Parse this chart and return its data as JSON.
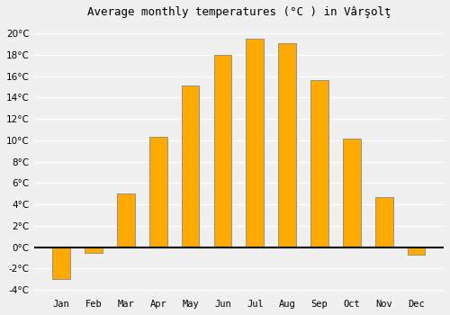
{
  "title": "Average monthly temperatures (°C ) in Vârşolţ",
  "months": [
    "Jan",
    "Feb",
    "Mar",
    "Apr",
    "May",
    "Jun",
    "Jul",
    "Aug",
    "Sep",
    "Oct",
    "Nov",
    "Dec"
  ],
  "temperatures": [
    -3.0,
    -0.5,
    5.0,
    10.3,
    15.1,
    18.0,
    19.5,
    19.1,
    15.6,
    10.2,
    4.7,
    -0.7
  ],
  "bar_color": "#FFAA00",
  "bar_edge_color": "#888888",
  "background_color": "#f0f0f0",
  "plot_bg_color": "#f0f0f0",
  "grid_color": "#ffffff",
  "zero_line_color": "#000000",
  "ylim": [
    -4.5,
    21.0
  ],
  "yticks": [
    -4,
    -2,
    0,
    2,
    4,
    6,
    8,
    10,
    12,
    14,
    16,
    18,
    20
  ],
  "title_fontsize": 9,
  "tick_fontsize": 7.5,
  "bar_width": 0.55
}
